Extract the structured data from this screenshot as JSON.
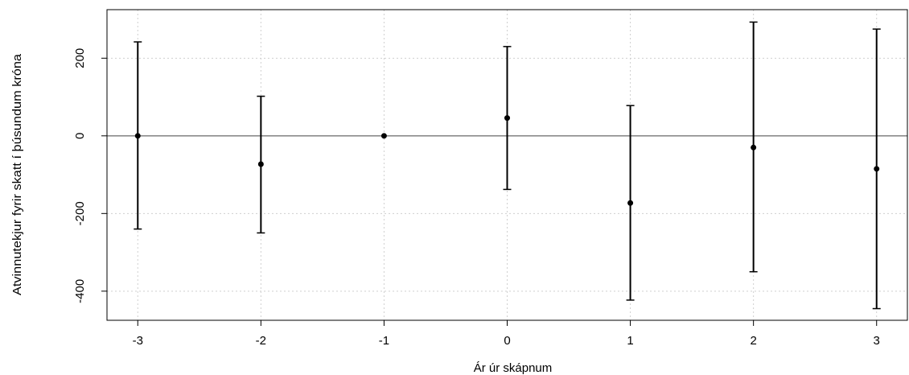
{
  "chart_data": {
    "type": "scatter",
    "subtype": "coefficient-plot-with-error-bars",
    "title": "",
    "xlabel": "Ár úr skápnum",
    "ylabel": "Atvinnutekjur fyrir skatt í þúsundum króna",
    "xlim": [
      -3.25,
      3.25
    ],
    "ylim": [
      -475,
      325
    ],
    "x_ticks": [
      -3,
      -2,
      -1,
      0,
      1,
      2,
      3
    ],
    "x_tick_labels": [
      "-3",
      "-2",
      "-1",
      "0",
      "1",
      "2",
      "3"
    ],
    "y_ticks": [
      -400,
      -200,
      0,
      200
    ],
    "y_tick_labels": [
      "-400",
      "-200",
      "0",
      "200"
    ],
    "grid": true,
    "grid_style": "dotted",
    "reference_line_y": 0,
    "points": [
      {
        "x": -3,
        "estimate": 0,
        "lower": -240,
        "upper": 242
      },
      {
        "x": -2,
        "estimate": -73,
        "lower": -250,
        "upper": 102
      },
      {
        "x": -1,
        "estimate": 0,
        "lower": null,
        "upper": null
      },
      {
        "x": 0,
        "estimate": 46,
        "lower": -138,
        "upper": 230
      },
      {
        "x": 1,
        "estimate": -173,
        "lower": -423,
        "upper": 78
      },
      {
        "x": 2,
        "estimate": -30,
        "lower": -350,
        "upper": 293
      },
      {
        "x": 3,
        "estimate": -85,
        "lower": -445,
        "upper": 275
      }
    ]
  }
}
